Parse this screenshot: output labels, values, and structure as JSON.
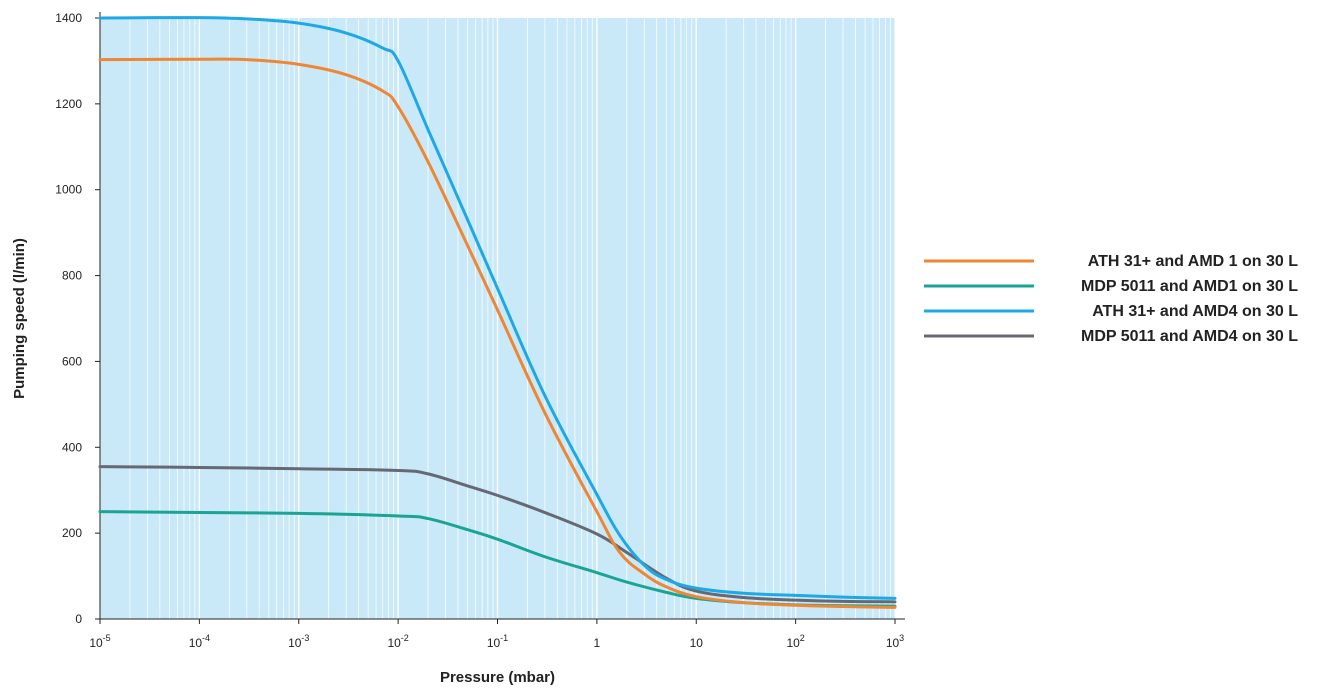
{
  "chart_data": {
    "type": "line",
    "title": "",
    "xlabel": "Pressure (mbar)",
    "ylabel": "Pumping speed (l/min)",
    "x_scale": "log",
    "xlim": [
      1e-05,
      1000
    ],
    "ylim": [
      0,
      1400
    ],
    "grid": true,
    "background": "#c9e9f8",
    "legend_position": "right",
    "x_ticks": [
      {
        "value": 1e-05,
        "base": "10",
        "exp": "-5"
      },
      {
        "value": 0.0001,
        "base": "10",
        "exp": "-4"
      },
      {
        "value": 0.001,
        "base": "10",
        "exp": "-3"
      },
      {
        "value": 0.01,
        "base": "10",
        "exp": "-2"
      },
      {
        "value": 0.1,
        "base": "10",
        "exp": "-1"
      },
      {
        "value": 1,
        "base": "1",
        "exp": ""
      },
      {
        "value": 10,
        "base": "10",
        "exp": ""
      },
      {
        "value": 100,
        "base": "10",
        "exp": "2"
      },
      {
        "value": 1000,
        "base": "10",
        "exp": "3"
      }
    ],
    "y_ticks": [
      "0",
      "200",
      "400",
      "600",
      "800",
      "1000",
      "1200",
      "1400"
    ],
    "series": [
      {
        "name": "ATH 31+ and AMD 1 on 30 L",
        "color": "#ee8633",
        "x": [
          1e-05,
          0.0001,
          0.0003,
          0.001,
          0.003,
          0.007,
          0.01,
          0.02,
          0.05,
          0.1,
          0.3,
          1,
          1.7,
          3,
          5,
          10,
          30,
          100,
          300,
          1000
        ],
        "y": [
          1303,
          1304,
          1303,
          1292,
          1268,
          1230,
          1193,
          1065,
          870,
          720,
          480,
          250,
          155,
          105,
          75,
          52,
          38,
          32,
          29,
          27
        ]
      },
      {
        "name": "MDP 5011 and AMD1 on 30 L",
        "color": "#19a493",
        "x": [
          1e-05,
          0.0001,
          0.001,
          0.01,
          0.02,
          0.05,
          0.1,
          0.3,
          1,
          2,
          5,
          10,
          30,
          100,
          300,
          1000
        ],
        "y": [
          250,
          248,
          246,
          240,
          234,
          208,
          186,
          145,
          108,
          86,
          62,
          48,
          38,
          33,
          31,
          30
        ]
      },
      {
        "name": "ATH 31+ and AMD4 on 30 L",
        "color": "#1ea8e6",
        "x": [
          1e-05,
          0.0001,
          0.0003,
          0.001,
          0.003,
          0.007,
          0.01,
          0.02,
          0.05,
          0.1,
          0.3,
          1,
          1.7,
          3,
          5,
          10,
          30,
          100,
          300,
          1000
        ],
        "y": [
          1400,
          1401,
          1398,
          1388,
          1365,
          1330,
          1300,
          1140,
          930,
          770,
          520,
          290,
          195,
          125,
          92,
          72,
          60,
          55,
          51,
          48
        ]
      },
      {
        "name": "MDP 5011 and AMD4 on 30 L",
        "color": "#666873",
        "x": [
          1e-05,
          0.0001,
          0.001,
          0.01,
          0.02,
          0.05,
          0.1,
          0.3,
          1,
          2,
          5,
          10,
          30,
          100,
          300,
          1000
        ],
        "y": [
          355,
          353,
          350,
          346,
          338,
          310,
          288,
          248,
          198,
          155,
          95,
          65,
          50,
          44,
          41,
          40
        ]
      }
    ]
  }
}
